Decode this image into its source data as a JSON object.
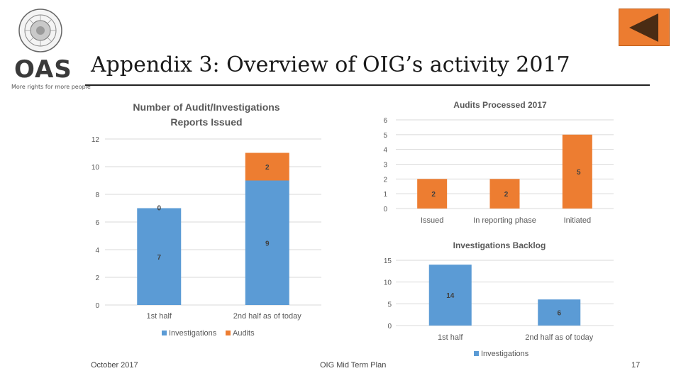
{
  "header": {
    "logo_text": "OAS",
    "logo_tagline": "More rights for more people",
    "title": "Appendix 3:  Overview of OIG’s activity 2017"
  },
  "nav": {
    "back_icon": "triangle-left-icon"
  },
  "footer": {
    "date": "October 2017",
    "center": "OIG Mid Term Plan",
    "page": "17"
  },
  "colors": {
    "investigations": "#5b9bd5",
    "audits": "#ed7d31",
    "grid": "#d9d9d9",
    "axis_text": "#595959"
  },
  "chart_data": [
    {
      "type": "bar",
      "stacked": true,
      "title": [
        "Number of Audit/Investigations",
        "Reports Issued"
      ],
      "categories": [
        "1st half",
        "2nd half as of today"
      ],
      "series": [
        {
          "name": "Investigations",
          "values": [
            7,
            9
          ]
        },
        {
          "name": "Audits",
          "values": [
            0,
            2
          ]
        }
      ],
      "ylim": [
        0,
        12
      ],
      "yticks": [
        0,
        2,
        4,
        6,
        8,
        10,
        12
      ],
      "grid": true,
      "legend": "bottom"
    },
    {
      "type": "bar",
      "title": "Audits Processed 2017",
      "categories": [
        "Issued",
        "In reporting phase",
        "Initiated"
      ],
      "series": [
        {
          "name": "Audits",
          "values": [
            2,
            2,
            5
          ]
        }
      ],
      "ylim": [
        0,
        6
      ],
      "yticks": [
        0,
        1,
        2,
        3,
        4,
        5,
        6
      ],
      "grid": true,
      "legend": "none"
    },
    {
      "type": "bar",
      "title": "Investigations Backlog",
      "categories": [
        "1st half",
        "2nd half as of today"
      ],
      "series": [
        {
          "name": "Investigations",
          "values": [
            14,
            6
          ]
        }
      ],
      "ylim": [
        0,
        15
      ],
      "yticks": [
        0,
        5,
        10,
        15
      ],
      "grid": true,
      "legend": "bottom"
    }
  ]
}
